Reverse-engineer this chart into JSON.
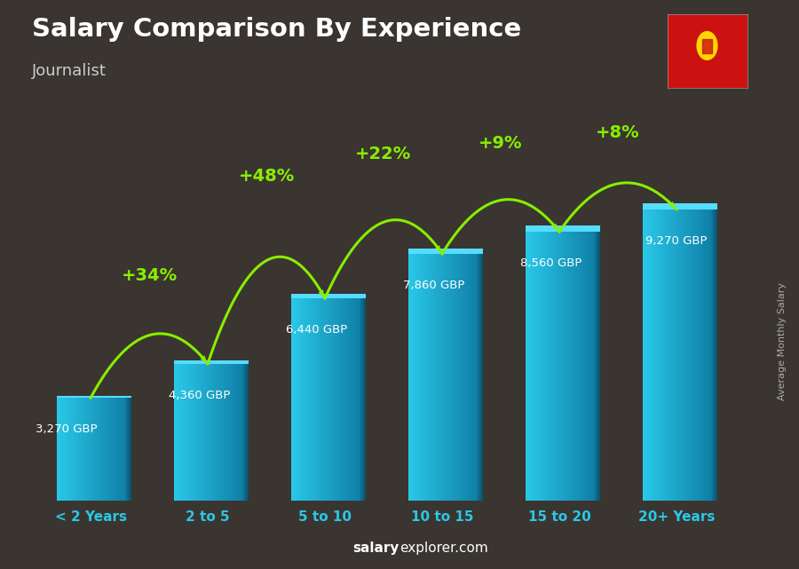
{
  "categories": [
    "< 2 Years",
    "2 to 5",
    "5 to 10",
    "10 to 15",
    "15 to 20",
    "20+ Years"
  ],
  "values": [
    3270,
    4360,
    6440,
    7860,
    8560,
    9270
  ],
  "labels": [
    "3,270 GBP",
    "4,360 GBP",
    "6,440 GBP",
    "7,860 GBP",
    "8,560 GBP",
    "9,270 GBP"
  ],
  "pct_changes": [
    "+34%",
    "+48%",
    "+22%",
    "+9%",
    "+8%"
  ],
  "title": "Salary Comparison By Experience",
  "subtitle": "Journalist",
  "ylabel_side": "Average Monthly Salary",
  "source_bold": "salary",
  "source_regular": "explorer.com",
  "bar_face_left": "#29C8E8",
  "bar_face_right": "#1899BB",
  "bar_top": "#55DDFF",
  "bar_side_dark": "#0D6E88",
  "bg_color": "#3a3530",
  "pct_color": "#88EE00",
  "label_color": "#ffffff",
  "title_color": "#ffffff",
  "subtitle_color": "#cccccc",
  "source_color": "#aaaaaa",
  "xtick_color": "#29C8E8",
  "figsize": [
    9.0,
    6.41
  ],
  "dpi": 100,
  "max_val": 10500,
  "bar_width": 0.58
}
